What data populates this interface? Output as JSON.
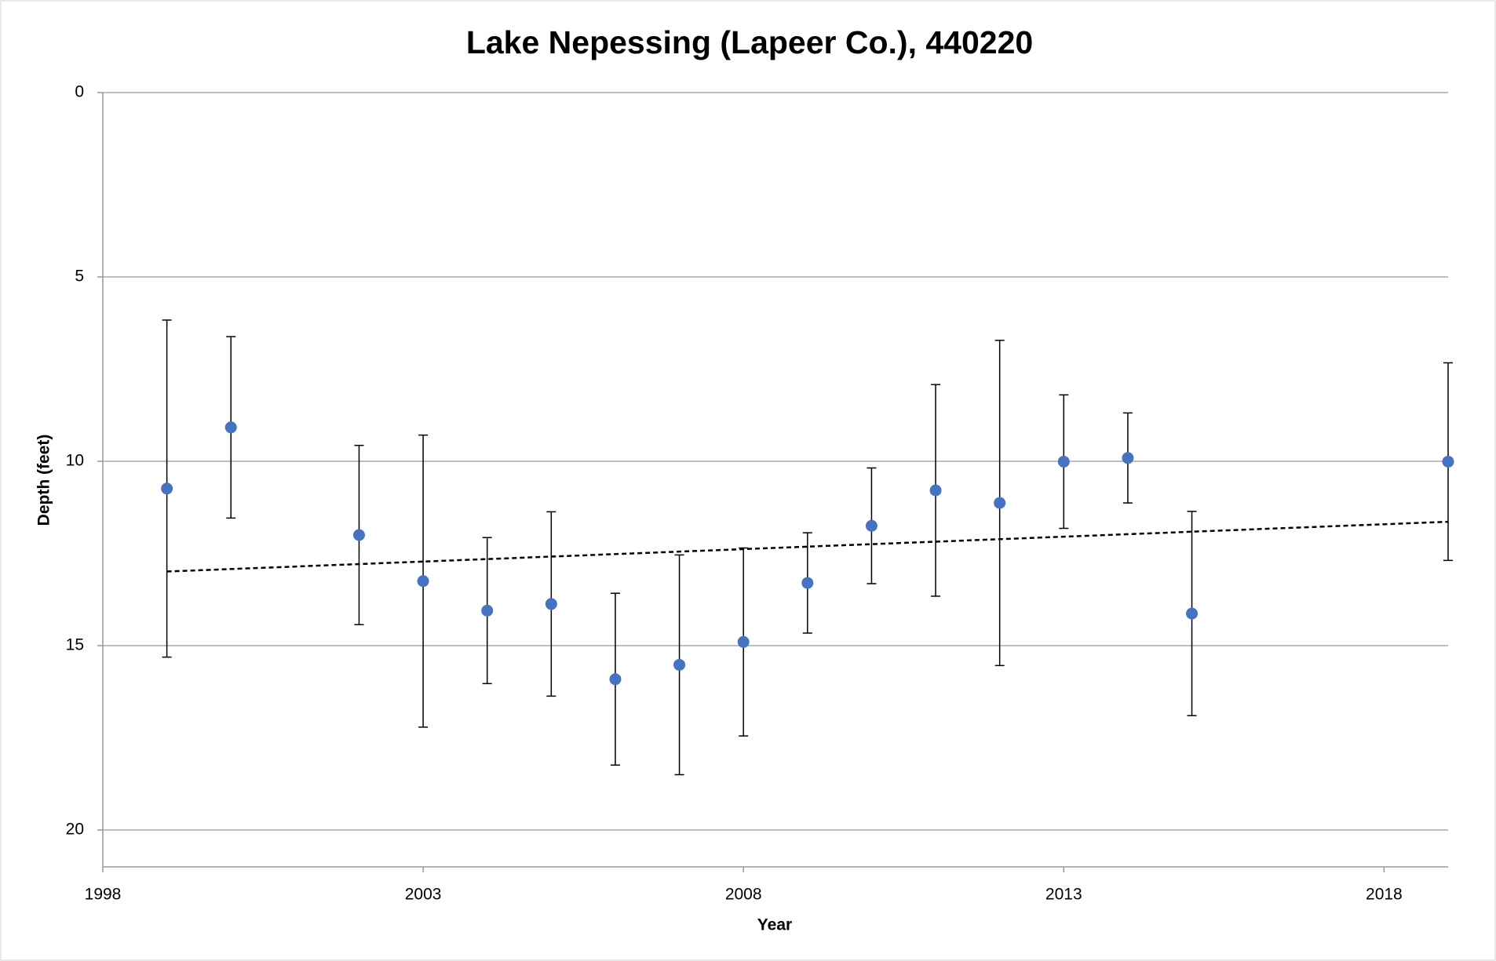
{
  "chart_data": {
    "type": "errorbar-scatter",
    "title": "Lake Nepessing (Lapeer Co.), 440220",
    "x_label": "Year",
    "y_label": "Depth (feet)",
    "x": [
      1999,
      2000,
      2002,
      2003,
      2004,
      2005,
      2006,
      2007,
      2008,
      2009,
      2010,
      2011,
      2012,
      2013,
      2014,
      2015,
      2019
    ],
    "series": [
      {
        "name": "Depth",
        "color": "#4472c4",
        "values": [
          10.74,
          9.08,
          12.0,
          13.25,
          14.05,
          13.87,
          15.91,
          15.52,
          14.9,
          13.3,
          11.75,
          10.79,
          11.13,
          10.01,
          9.91,
          14.13,
          10.01
        ],
        "errors": [
          4.57,
          2.46,
          2.43,
          3.96,
          1.98,
          2.5,
          2.33,
          2.98,
          2.55,
          1.36,
          1.57,
          2.87,
          4.41,
          1.81,
          1.22,
          2.77,
          2.68
        ]
      }
    ],
    "trendline": {
      "x": [
        1999,
        2019
      ],
      "values": [
        12.99,
        11.64
      ],
      "color": "#000000",
      "dashed": true
    },
    "xlim": [
      1998,
      2019
    ],
    "xticks": [
      1998,
      2003,
      2008,
      2013,
      2018
    ],
    "ylim": [
      0,
      21
    ],
    "yticks": [
      0,
      5,
      10,
      15,
      20
    ],
    "y_inverted": true,
    "grid": true
  }
}
